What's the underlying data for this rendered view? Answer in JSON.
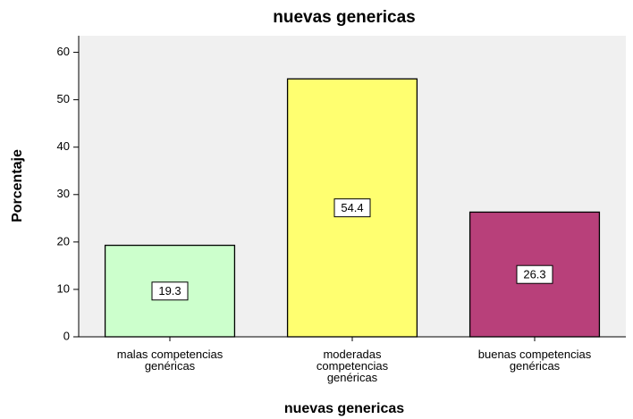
{
  "chart_data": {
    "type": "bar",
    "title": "nuevas genericas",
    "x_label": "nuevas genericas",
    "y_label": "Porcentaje",
    "categories": [
      "malas competencias\ngenéricas",
      "moderadas\ncompetencias\ngenéricas",
      "buenas competencias\ngenéricas"
    ],
    "values": [
      19.3,
      54.4,
      26.3
    ],
    "colors": [
      "#ccffcc",
      "#ffff70",
      "#b8407a"
    ],
    "ylim": [
      0,
      63.5
    ],
    "yticks": [
      0,
      10,
      20,
      30,
      40,
      50,
      60
    ],
    "grid": false
  }
}
